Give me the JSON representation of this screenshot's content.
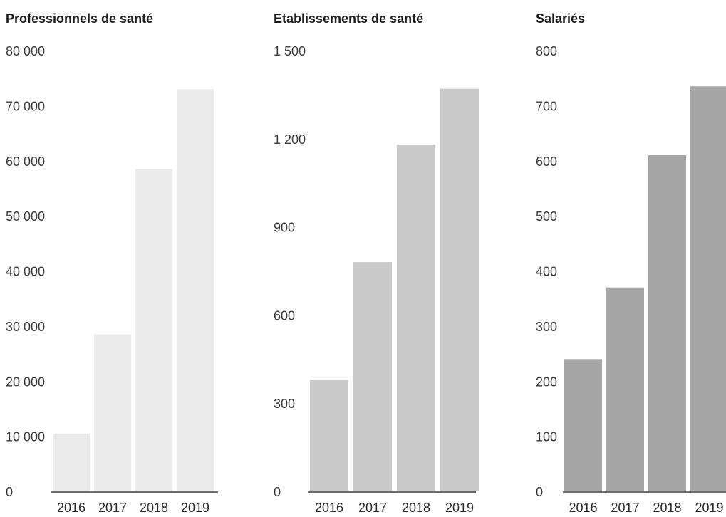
{
  "chart_data": [
    {
      "type": "bar",
      "title": "Professionnels de santé",
      "categories": [
        "2016",
        "2017",
        "2018",
        "2019"
      ],
      "values": [
        10500,
        28500,
        58500,
        73000
      ],
      "ylim": [
        0,
        80000
      ],
      "yticks": [
        0,
        10000,
        20000,
        30000,
        40000,
        50000,
        60000,
        70000,
        80000
      ],
      "ytick_labels": [
        "0",
        "10 000",
        "20 000",
        "30 000",
        "40 000",
        "50 000",
        "60 000",
        "70 000",
        "80 000"
      ],
      "grid": false,
      "color": "#ebebeb"
    },
    {
      "type": "bar",
      "title": "Etablissements de santé",
      "categories": [
        "2016",
        "2017",
        "2018",
        "2019"
      ],
      "values": [
        380,
        780,
        1180,
        1370
      ],
      "ylim": [
        0,
        1500
      ],
      "yticks": [
        0,
        300,
        600,
        900,
        1200,
        1500
      ],
      "ytick_labels": [
        "0",
        "300",
        "600",
        "900",
        "1 200",
        "1 500"
      ],
      "grid": false,
      "color": "#c9c9c9"
    },
    {
      "type": "bar",
      "title": "Salariés",
      "categories": [
        "2016",
        "2017",
        "2018",
        "2019"
      ],
      "values": [
        240,
        370,
        610,
        735
      ],
      "ylim": [
        0,
        800
      ],
      "yticks": [
        0,
        100,
        200,
        300,
        400,
        500,
        600,
        700,
        800
      ],
      "ytick_labels": [
        "0",
        "100",
        "200",
        "300",
        "400",
        "500",
        "600",
        "700",
        "800"
      ],
      "grid": false,
      "color": "#a6a6a6"
    }
  ]
}
